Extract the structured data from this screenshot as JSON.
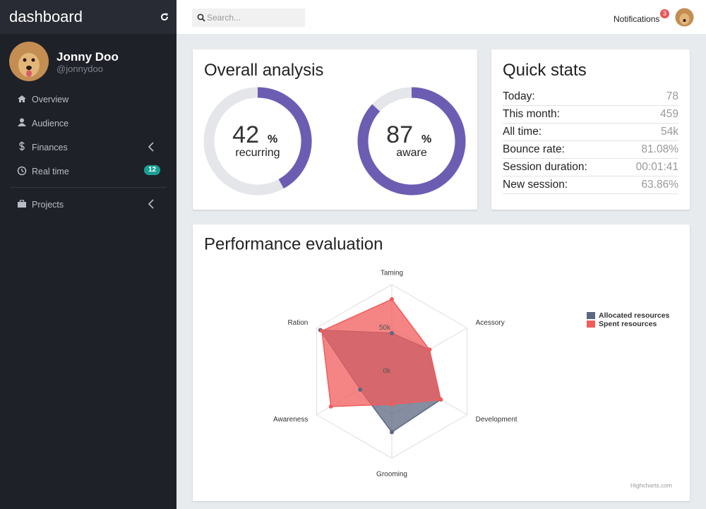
{
  "sidebar": {
    "brand": "dashboard",
    "user": {
      "name": "Jonny Doo",
      "handle": "@jonnydoo"
    },
    "nav": [
      {
        "label": "Overview"
      },
      {
        "label": "Audience"
      },
      {
        "label": "Finances"
      },
      {
        "label": "Real time",
        "badge": "12"
      },
      {
        "label": "Projects"
      }
    ]
  },
  "topbar": {
    "search_placeholder": "Search...",
    "notifications": "Notifications",
    "notification_count": "3"
  },
  "overall_title": "Overall analysis",
  "quick_stats": {
    "title": "Quick stats",
    "rows": [
      [
        "Today:",
        "78"
      ],
      [
        "This month:",
        "459"
      ],
      [
        "All time:",
        "54k"
      ],
      [
        "Bounce rate:",
        "81.08%"
      ],
      [
        "Session duration:",
        "00:01:41"
      ],
      [
        "New session:",
        "63.86%"
      ]
    ]
  },
  "chart_data": [
    {
      "type": "donut",
      "value": 42,
      "unit": "%",
      "label": "recurring",
      "color": "#6c5db3",
      "track_color": "#e4e6ea",
      "ylim": [
        0,
        100
      ]
    },
    {
      "type": "donut",
      "value": 87,
      "unit": "%",
      "label": "aware",
      "color": "#6c5db3",
      "track_color": "#e4e6ea",
      "ylim": [
        0,
        100
      ]
    },
    {
      "type": "radar",
      "title": "Performance evaluation",
      "categories": [
        "Taming",
        "Acessory",
        "Development",
        "Grooming",
        "Awareness",
        "Ration"
      ],
      "series": [
        {
          "name": "Allocated resources",
          "color": "#5c6780",
          "values": [
            44000,
            50000,
            65000,
            70000,
            42000,
            95000
          ]
        },
        {
          "name": "Spent resources",
          "color": "#f15c5c",
          "values": [
            83000,
            50000,
            65000,
            38000,
            81000,
            93000
          ]
        }
      ],
      "ylim": [
        0,
        100000
      ],
      "yticks": [
        {
          "value": 0,
          "label": "0k"
        },
        {
          "value": 50000,
          "label": "50k"
        }
      ],
      "grid": true,
      "legend": "top-right",
      "credit": "Highcharts.com"
    }
  ]
}
